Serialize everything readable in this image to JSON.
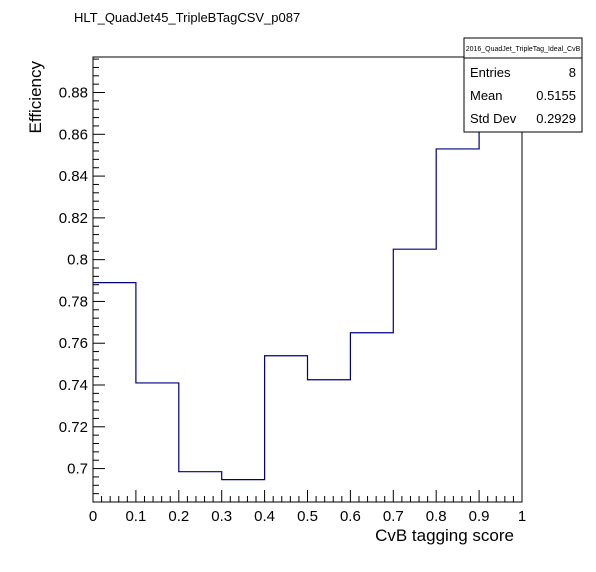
{
  "chart_data": {
    "type": "step",
    "title": "HLT_QuadJet45_TripleBTagCSV_p087",
    "xlabel": "CvB tagging score",
    "ylabel": "Efficiency",
    "xlim": [
      0,
      1
    ],
    "ylim": [
      0.684,
      0.897
    ],
    "x_ticks": [
      0,
      0.1,
      0.2,
      0.3,
      0.4,
      0.5,
      0.6,
      0.7,
      0.8,
      0.9,
      1
    ],
    "x_tick_labels": [
      "0",
      "0.1",
      "0.2",
      "0.3",
      "0.4",
      "0.5",
      "0.6",
      "0.7",
      "0.8",
      "0.9",
      "1"
    ],
    "y_ticks": [
      0.7,
      0.72,
      0.74,
      0.76,
      0.78,
      0.8,
      0.82,
      0.84,
      0.86,
      0.88
    ],
    "y_tick_labels": [
      "0.7",
      "0.72",
      "0.74",
      "0.76",
      "0.78",
      "0.8",
      "0.82",
      "0.84",
      "0.86",
      "0.88"
    ],
    "bin_edges": [
      0,
      0.1,
      0.2,
      0.3,
      0.4,
      0.5,
      0.6,
      0.7,
      0.8,
      0.9,
      1.0
    ],
    "values": [
      0.789,
      0.741,
      0.6985,
      0.6947,
      0.754,
      0.7425,
      0.765,
      0.805,
      0.853,
      0.888
    ],
    "line_color": "#000080",
    "grid": false,
    "stats_box": {
      "name": "2016_QuadJet_TripleTag_Ideal_CvB",
      "rows": [
        {
          "label": "Entries",
          "value": "8"
        },
        {
          "label": "Mean",
          "value": "0.5155"
        },
        {
          "label": "Std Dev",
          "value": "0.2929"
        }
      ],
      "placement": "top-right"
    }
  }
}
